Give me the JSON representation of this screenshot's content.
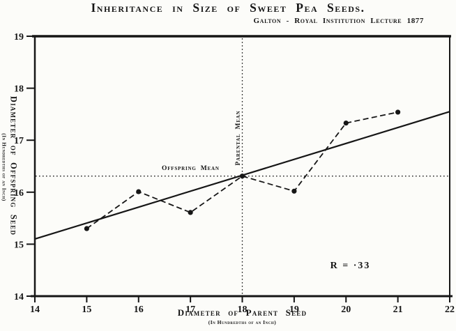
{
  "chart_data": {
    "type": "scatter",
    "title": "Inheritance in Size of Sweet Pea Seeds.",
    "subtitle": "Galton - Royal Institution Lecture 1877",
    "xlabel": "Diameter of Parent Seed",
    "xlabel_sub": "(In Hundredths of an Inch)",
    "ylabel": "Diameter of Offspring Seed",
    "ylabel_sub": "(In Hundredths of an Inch)",
    "xlim": [
      14,
      22
    ],
    "ylim": [
      14,
      19
    ],
    "x_ticks": [
      14,
      15,
      16,
      17,
      18,
      19,
      20,
      21,
      22
    ],
    "y_ticks": [
      14,
      15,
      16,
      17,
      18,
      19
    ],
    "grid": false,
    "legend": false,
    "series": [
      {
        "name": "offspring-mean-by-parent-size",
        "style": "dashed-line-with-dots",
        "x": [
          15,
          16,
          17,
          18,
          19,
          20,
          21
        ],
        "y": [
          15.3,
          16.01,
          15.61,
          16.31,
          16.02,
          17.33,
          17.54
        ]
      }
    ],
    "fit_line": {
      "style": "solid",
      "x": [
        14,
        22
      ],
      "y": [
        15.1,
        17.55
      ]
    },
    "mean_lines": {
      "parental_mean_x": 18,
      "offspring_mean_y": 16.31,
      "offspring_mean_label": "Offspring Mean",
      "parental_mean_label": "Parental Mean"
    },
    "annotations": {
      "r_label": "R = ·33"
    },
    "ink_color": "#161616",
    "paper_color": "#fcfcf9"
  }
}
